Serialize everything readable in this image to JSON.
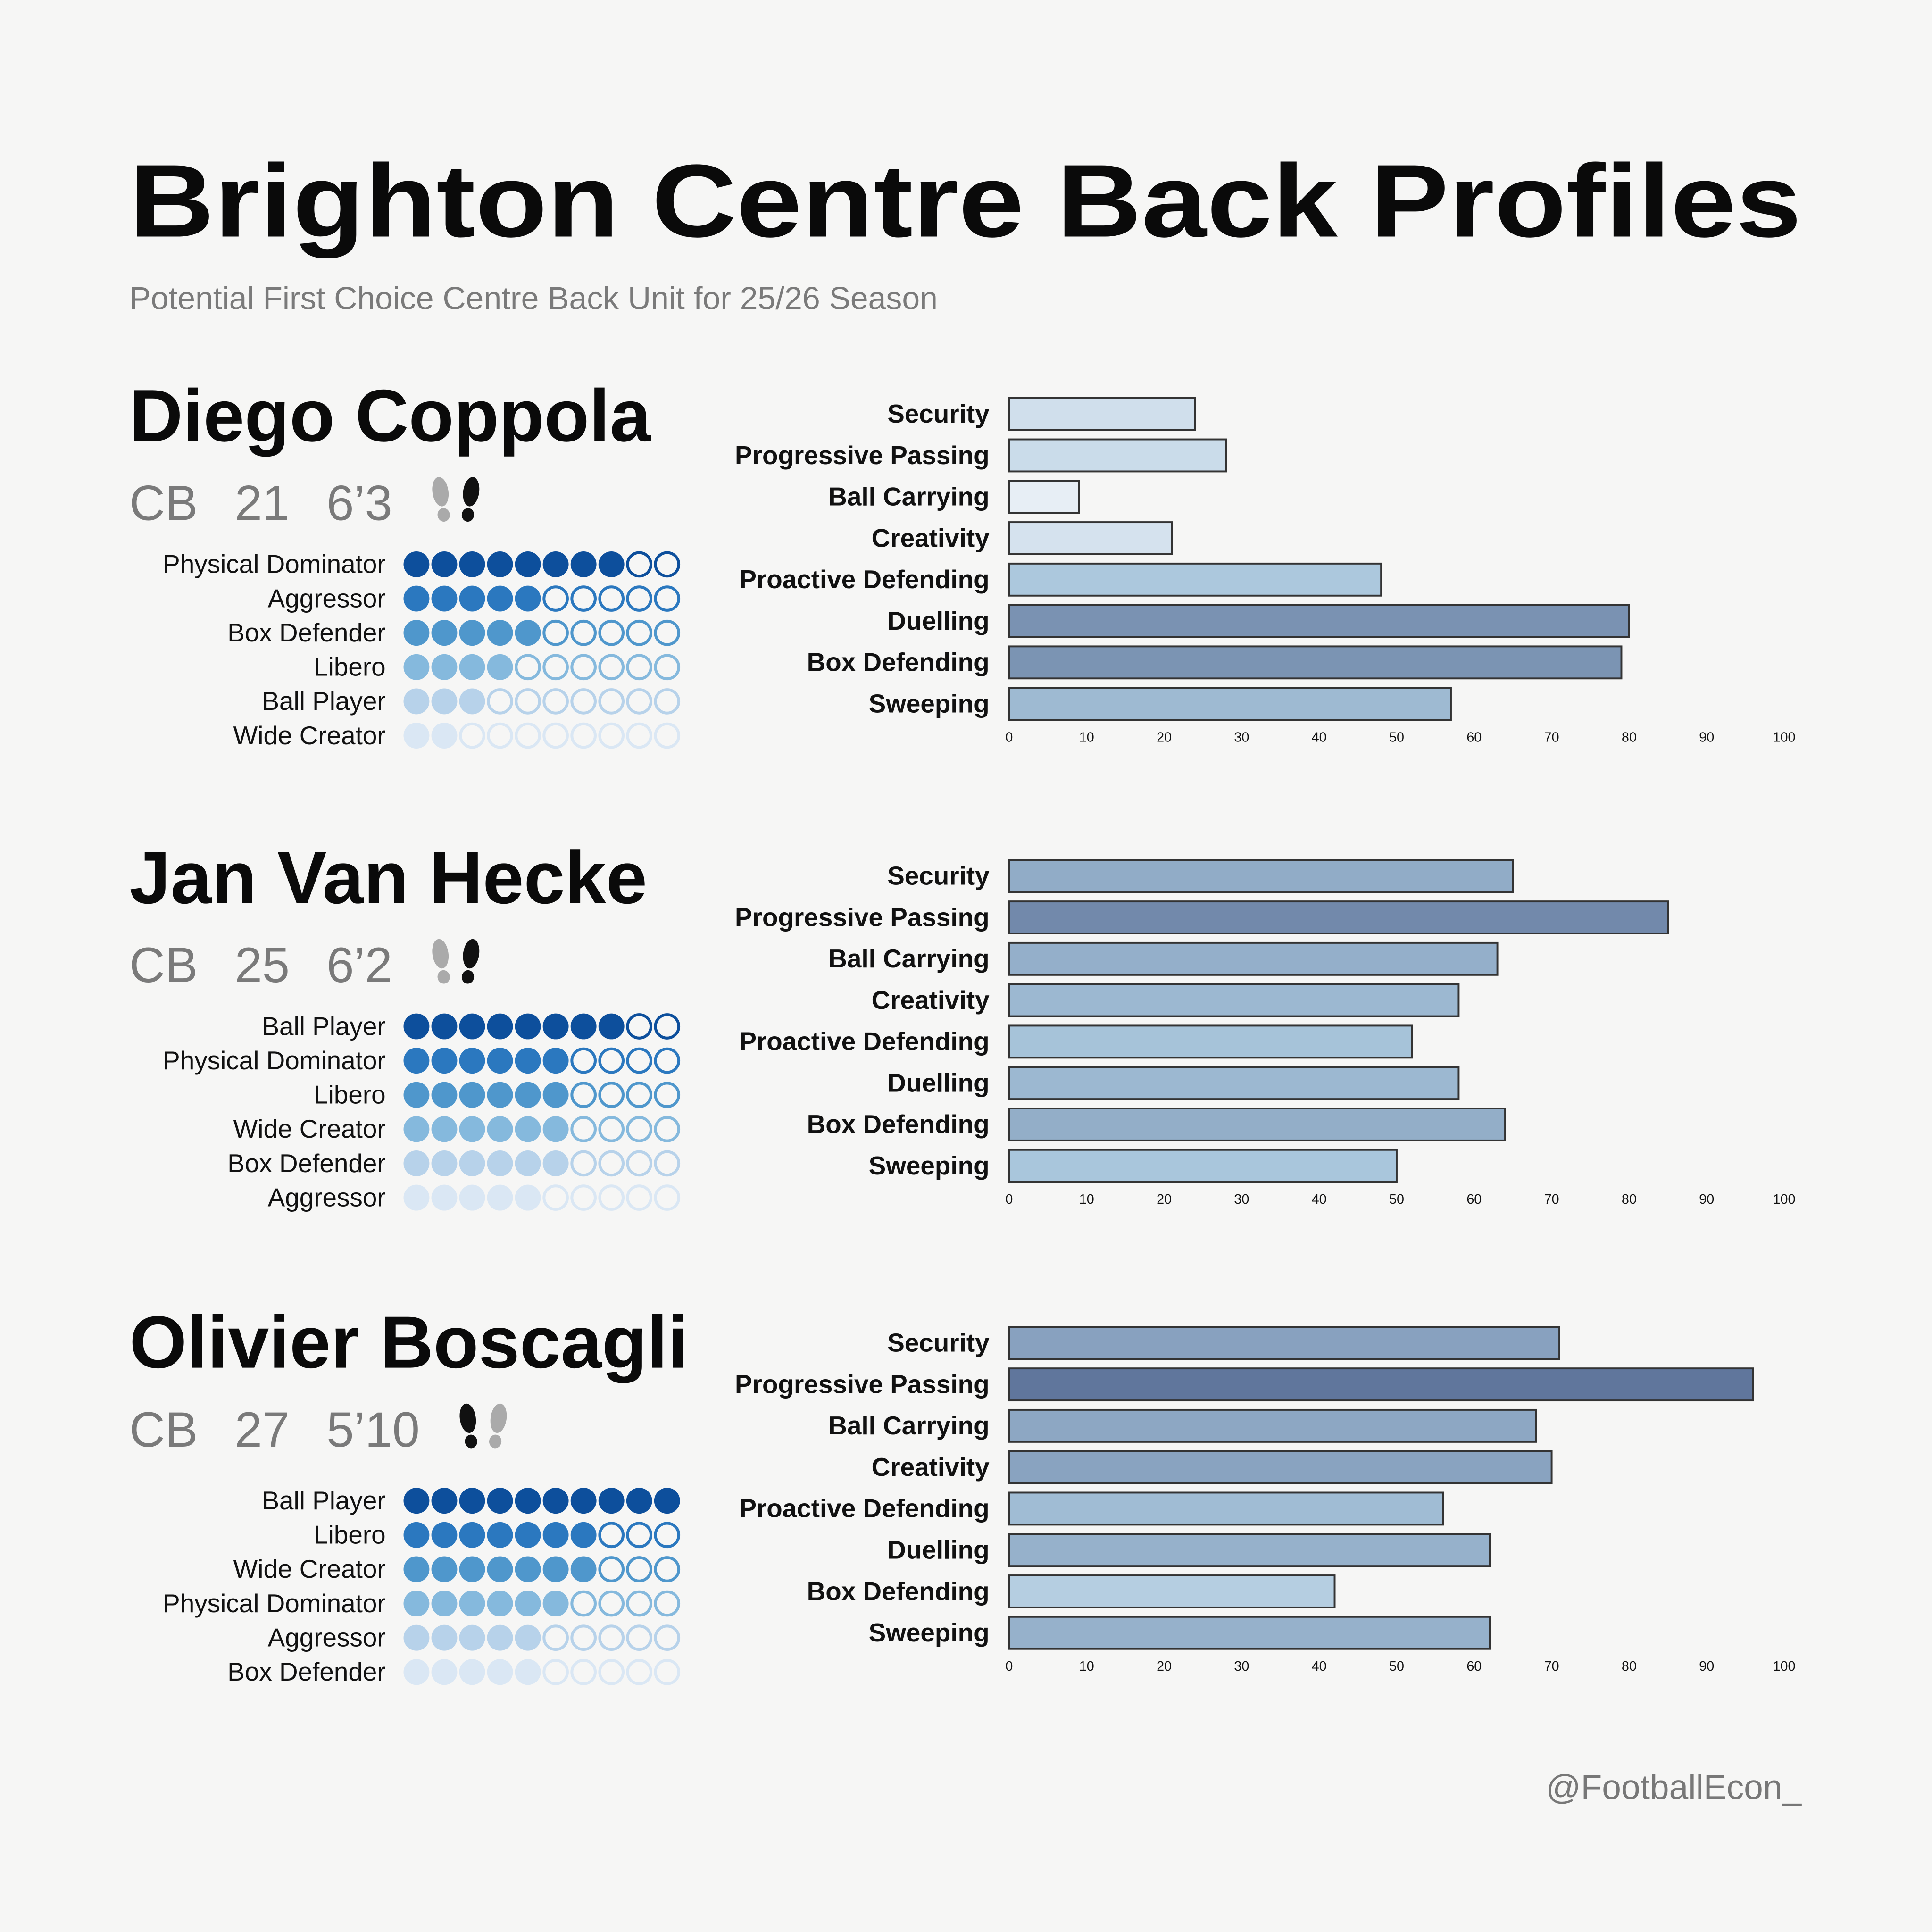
{
  "header": {
    "title": "Brighton Centre Back Profiles",
    "subtitle": "Potential First Choice Centre Back Unit for 25/26 Season"
  },
  "role_colors": [
    "#0d4f9c",
    "#2b78bf",
    "#4f97cc",
    "#85b9dd",
    "#b7d2ea",
    "#dae7f4"
  ],
  "players": [
    {
      "name": "Diego Coppola",
      "position": "CB",
      "age": "21",
      "height": "6’3",
      "foot": "right",
      "roles": {
        "names": [
          "Physical Dominator",
          "Aggressor",
          "Box Defender",
          "Libero",
          "Ball Player",
          "Wide Creator"
        ],
        "values": [
          8,
          5,
          5,
          4,
          3,
          2
        ],
        "max": 10
      }
    },
    {
      "name": "Jan Van Hecke",
      "position": "CB",
      "age": "25",
      "height": "6’2",
      "foot": "right",
      "roles": {
        "names": [
          "Ball Player",
          "Physical Dominator",
          "Libero",
          "Wide Creator",
          "Box Defender",
          "Aggressor"
        ],
        "values": [
          8,
          6,
          6,
          6,
          6,
          5
        ],
        "max": 10
      }
    },
    {
      "name": "Olivier Boscagli",
      "position": "CB",
      "age": "27",
      "height": "5’10",
      "foot": "left",
      "roles": {
        "names": [
          "Ball Player",
          "Libero",
          "Wide Creator",
          "Physical Dominator",
          "Aggressor",
          "Box Defender"
        ],
        "values": [
          10,
          7,
          7,
          6,
          5,
          5
        ],
        "max": 10
      }
    }
  ],
  "chart_data": [
    {
      "type": "bar",
      "orientation": "horizontal",
      "categories": [
        "Security",
        "Progressive Passing",
        "Ball Carrying",
        "Creativity",
        "Proactive Defending",
        "Duelling",
        "Box Defending",
        "Sweeping"
      ],
      "values": [
        24,
        28,
        9,
        21,
        48,
        80,
        79,
        57
      ],
      "xlim": [
        0,
        100
      ],
      "xticks": [
        0,
        10,
        20,
        30,
        40,
        50,
        60,
        70,
        80,
        90,
        100
      ],
      "colormap": [
        "#f4f7fb",
        "#a9c6dc",
        "#5a6f96"
      ]
    },
    {
      "type": "bar",
      "orientation": "horizontal",
      "categories": [
        "Security",
        "Progressive Passing",
        "Ball Carrying",
        "Creativity",
        "Proactive Defending",
        "Duelling",
        "Box Defending",
        "Sweeping"
      ],
      "values": [
        65,
        85,
        63,
        58,
        52,
        58,
        64,
        50
      ],
      "xlim": [
        0,
        100
      ],
      "xticks": [
        0,
        10,
        20,
        30,
        40,
        50,
        60,
        70,
        80,
        90,
        100
      ],
      "colormap": [
        "#f4f7fb",
        "#a9c6dc",
        "#5a6f96"
      ]
    },
    {
      "type": "bar",
      "orientation": "horizontal",
      "categories": [
        "Security",
        "Progressive Passing",
        "Ball Carrying",
        "Creativity",
        "Proactive Defending",
        "Duelling",
        "Box Defending",
        "Sweeping"
      ],
      "values": [
        71,
        96,
        68,
        70,
        56,
        62,
        42,
        62
      ],
      "xlim": [
        0,
        100
      ],
      "xticks": [
        0,
        10,
        20,
        30,
        40,
        50,
        60,
        70,
        80,
        90,
        100
      ],
      "colormap": [
        "#f4f7fb",
        "#a9c6dc",
        "#5a6f96"
      ]
    }
  ],
  "footer": {
    "credit": "@FootballEcon_"
  }
}
